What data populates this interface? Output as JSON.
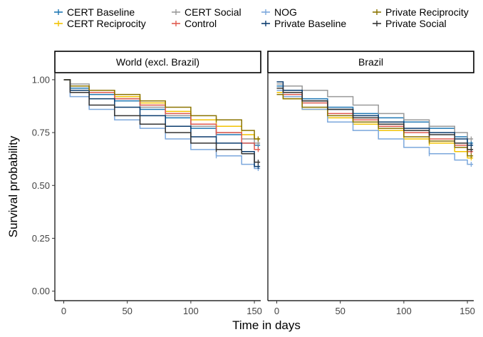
{
  "chart_data": {
    "type": "line",
    "subtype": "step (Kaplan-Meier survival curves), faceted",
    "xlabel": "Time in days",
    "ylabel": "Survival probability",
    "xlim": [
      0,
      155
    ],
    "ylim": [
      0,
      1.03
    ],
    "x_ticks": [
      0,
      50,
      100,
      150
    ],
    "y_ticks": [
      0.0,
      0.25,
      0.5,
      0.75,
      1.0
    ],
    "y_tick_labels": [
      "0.00",
      "0.25",
      "0.50",
      "0.75",
      "1.00"
    ],
    "x_tick_labels": [
      "0",
      "50",
      "100",
      "150"
    ],
    "grid": false,
    "legend_position": "top",
    "legend": [
      {
        "name": "CERT Baseline",
        "color": "#1f77b4"
      },
      {
        "name": "CERT Reciprocity",
        "color": "#f2c200"
      },
      {
        "name": "CERT Social",
        "color": "#999999"
      },
      {
        "name": "Control",
        "color": "#e05a4f"
      },
      {
        "name": "NOG",
        "color": "#7ba7dc"
      },
      {
        "name": "Private Baseline",
        "color": "#0b3c6e"
      },
      {
        "name": "Private Reciprocity",
        "color": "#8b7400"
      },
      {
        "name": "Private Social",
        "color": "#333333"
      }
    ],
    "facets": [
      {
        "title": "World (excl. Brazil)",
        "series": [
          {
            "name": "CERT Baseline",
            "x": [
              0,
              5,
              20,
              40,
              60,
              80,
              100,
              120,
              140,
              150
            ],
            "y": [
              1.0,
              0.96,
              0.93,
              0.9,
              0.86,
              0.82,
              0.77,
              0.74,
              0.7,
              0.69
            ]
          },
          {
            "name": "CERT Reciprocity",
            "x": [
              0,
              5,
              20,
              40,
              60,
              80,
              100,
              120,
              140,
              150
            ],
            "y": [
              1.0,
              0.97,
              0.95,
              0.92,
              0.89,
              0.85,
              0.81,
              0.78,
              0.74,
              0.72
            ]
          },
          {
            "name": "CERT Social",
            "x": [
              0,
              5,
              20,
              40,
              60,
              80,
              100,
              120,
              140,
              150
            ],
            "y": [
              1.0,
              0.98,
              0.95,
              0.91,
              0.87,
              0.83,
              0.78,
              0.75,
              0.72,
              0.7
            ]
          },
          {
            "name": "Control",
            "x": [
              0,
              5,
              20,
              40,
              60,
              80,
              100,
              120,
              140,
              150
            ],
            "y": [
              1.0,
              0.97,
              0.94,
              0.91,
              0.88,
              0.84,
              0.79,
              0.75,
              0.7,
              0.67
            ]
          },
          {
            "name": "NOG",
            "x": [
              0,
              5,
              20,
              40,
              60,
              80,
              100,
              120,
              140,
              150
            ],
            "y": [
              1.0,
              0.92,
              0.86,
              0.81,
              0.77,
              0.72,
              0.67,
              0.64,
              0.6,
              0.58
            ]
          },
          {
            "name": "Private Baseline",
            "x": [
              0,
              5,
              20,
              40,
              60,
              80,
              100,
              120,
              140,
              150
            ],
            "y": [
              1.0,
              0.95,
              0.91,
              0.87,
              0.83,
              0.78,
              0.73,
              0.7,
              0.66,
              0.59
            ]
          },
          {
            "name": "Private Reciprocity",
            "x": [
              0,
              5,
              20,
              40,
              60,
              80,
              100,
              120,
              140,
              150
            ],
            "y": [
              1.0,
              0.97,
              0.95,
              0.93,
              0.9,
              0.87,
              0.83,
              0.81,
              0.76,
              0.72
            ]
          },
          {
            "name": "Private Social",
            "x": [
              0,
              5,
              20,
              40,
              60,
              80,
              100,
              120,
              140,
              150
            ],
            "y": [
              1.0,
              0.94,
              0.88,
              0.83,
              0.79,
              0.75,
              0.7,
              0.67,
              0.65,
              0.61
            ]
          }
        ]
      },
      {
        "title": "Brazil",
        "series": [
          {
            "name": "CERT Baseline",
            "x": [
              0,
              5,
              20,
              40,
              60,
              80,
              100,
              120,
              140,
              150
            ],
            "y": [
              0.97,
              0.95,
              0.91,
              0.87,
              0.84,
              0.82,
              0.8,
              0.77,
              0.73,
              0.7
            ]
          },
          {
            "name": "CERT Reciprocity",
            "x": [
              0,
              5,
              20,
              40,
              60,
              80,
              100,
              120,
              140,
              150
            ],
            "y": [
              0.94,
              0.91,
              0.86,
              0.82,
              0.79,
              0.76,
              0.72,
              0.7,
              0.66,
              0.63
            ]
          },
          {
            "name": "CERT Social",
            "x": [
              0,
              5,
              20,
              40,
              60,
              80,
              100,
              120,
              140,
              150
            ],
            "y": [
              0.98,
              0.97,
              0.95,
              0.92,
              0.88,
              0.84,
              0.81,
              0.78,
              0.75,
              0.72
            ]
          },
          {
            "name": "Control",
            "x": [
              0,
              5,
              20,
              40,
              60,
              80,
              100,
              120,
              140,
              150
            ],
            "y": [
              0.96,
              0.93,
              0.89,
              0.84,
              0.81,
              0.78,
              0.75,
              0.72,
              0.69,
              0.66
            ]
          },
          {
            "name": "NOG",
            "x": [
              0,
              5,
              20,
              40,
              60,
              80,
              100,
              120,
              140,
              150
            ],
            "y": [
              0.95,
              0.92,
              0.86,
              0.8,
              0.76,
              0.72,
              0.68,
              0.65,
              0.62,
              0.6
            ]
          },
          {
            "name": "Private Baseline",
            "x": [
              0,
              5,
              20,
              40,
              60,
              80,
              100,
              120,
              140,
              150
            ],
            "y": [
              0.99,
              0.95,
              0.9,
              0.86,
              0.83,
              0.8,
              0.77,
              0.75,
              0.72,
              0.69
            ]
          },
          {
            "name": "Private Reciprocity",
            "x": [
              0,
              5,
              20,
              40,
              60,
              80,
              100,
              120,
              140,
              150
            ],
            "y": [
              0.93,
              0.91,
              0.87,
              0.83,
              0.8,
              0.77,
              0.73,
              0.71,
              0.68,
              0.64
            ]
          },
          {
            "name": "Private Social",
            "x": [
              0,
              5,
              20,
              40,
              60,
              80,
              100,
              120,
              140,
              150
            ],
            "y": [
              0.96,
              0.94,
              0.9,
              0.86,
              0.82,
              0.79,
              0.76,
              0.74,
              0.7,
              0.67
            ]
          }
        ]
      }
    ]
  }
}
